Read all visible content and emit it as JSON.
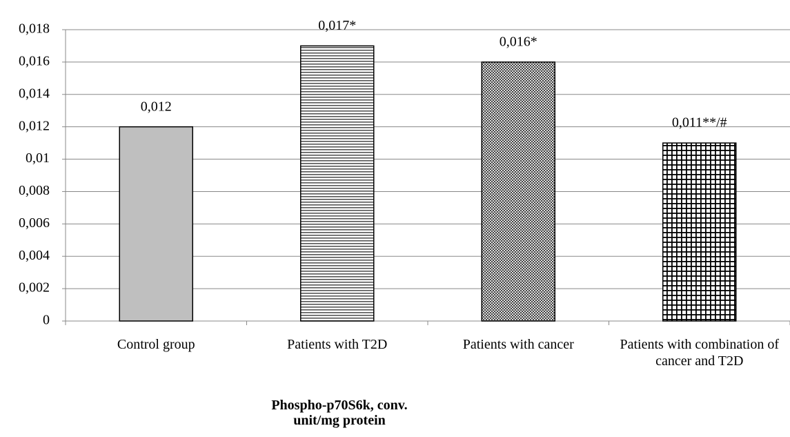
{
  "chart_data": {
    "type": "bar",
    "categories": [
      "Control group",
      "Patients with T2D",
      "Patients with cancer",
      "Patients with combination of cancer and T2D"
    ],
    "values": [
      0.012,
      0.017,
      0.016,
      0.011
    ],
    "value_labels": [
      "0,012",
      "0,017*",
      "0,016*",
      "0,011**/#"
    ],
    "patterns": [
      "solid",
      "horizontal-lines",
      "checker",
      "grid"
    ],
    "x_label": "Phospho-p70S6k, conv. unit/mg protein",
    "ylim": [
      0,
      0.018
    ],
    "yticks": [
      0,
      {
        "value": 0.002,
        "label": "0,002"
      },
      {
        "value": 0.004,
        "label": "0,004"
      },
      {
        "value": 0.006,
        "label": "0,006"
      },
      {
        "value": 0.008,
        "label": "0,008"
      },
      {
        "value": 0.01,
        "label": "0,01"
      },
      {
        "value": 0.012,
        "label": "0,012"
      },
      {
        "value": 0.014,
        "label": "0,014"
      },
      {
        "value": 0.016,
        "label": "0,016"
      },
      {
        "value": 0.018,
        "label": "0,018"
      }
    ],
    "grid": true
  }
}
